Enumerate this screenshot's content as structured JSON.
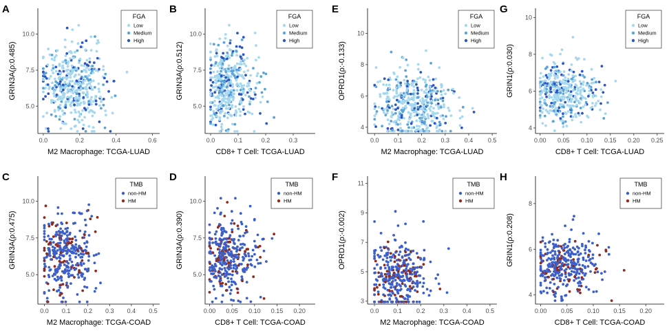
{
  "figure_title": "",
  "colors": {
    "fga": {
      "Low": "#a6d8ef",
      "Medium": "#5aa3d6",
      "High": "#2f56bf"
    },
    "tmb": {
      "non-HM": "#3c5fc8",
      "HM": "#8f2a1f"
    }
  },
  "chart_data": [
    {
      "type": "scatter",
      "panel": "A",
      "ylabel": "GRIN3A(ρ:0.485)",
      "xlabel": "M2 Macrophage: TCGA-LUAD",
      "xlim": [
        -0.03,
        0.64
      ],
      "ylim": [
        3.1,
        11.8
      ],
      "xticks": [
        "0.0",
        "0.2",
        "0.4",
        "0.6"
      ],
      "xtickvals": [
        0,
        0.2,
        0.4,
        0.6
      ],
      "yticks": [
        "5.0",
        "7.5",
        "10.0"
      ],
      "ytickvals": [
        5,
        7.5,
        10
      ],
      "legend_title": "FGA",
      "legend": [
        "Low",
        "Medium",
        "High"
      ],
      "n": 460,
      "seed": 11,
      "x_mean": 0.16,
      "x_sd": 0.09,
      "y_mean": 6.4,
      "y_sd": 1.35,
      "y_max": 11.5,
      "group_probs": [
        0.62,
        0.2,
        0.18
      ]
    },
    {
      "type": "scatter",
      "panel": "B",
      "ylabel": "GRIN3A(ρ:0.512)",
      "xlabel": "CD8+ T Cell: TCGA-LUAD",
      "xlim": [
        -0.02,
        0.38
      ],
      "ylim": [
        3.1,
        11.8
      ],
      "xticks": [
        "0.0",
        "0.1",
        "0.2",
        "0.3"
      ],
      "xtickvals": [
        0,
        0.1,
        0.2,
        0.3
      ],
      "yticks": [
        "5.0",
        "7.5",
        "10.0"
      ],
      "ytickvals": [
        5,
        7.5,
        10
      ],
      "legend_title": "FGA",
      "legend": [
        "Low",
        "Medium",
        "High"
      ],
      "n": 460,
      "seed": 23,
      "x_mean": 0.06,
      "x_sd": 0.05,
      "y_mean": 6.4,
      "y_sd": 1.35,
      "y_max": 11.5,
      "group_probs": [
        0.62,
        0.2,
        0.18
      ]
    },
    {
      "type": "scatter",
      "panel": "E",
      "ylabel": "OPRD1(ρ:-0.133)",
      "xlabel": "M2 Macrophage: TCGA-LUAD",
      "xlim": [
        -0.03,
        0.52
      ],
      "ylim": [
        3.6,
        11.6
      ],
      "xticks": [
        "0.0",
        "0.1",
        "0.2",
        "0.3",
        "0.4",
        "0.5"
      ],
      "xtickvals": [
        0,
        0.1,
        0.2,
        0.3,
        0.4,
        0.5
      ],
      "yticks": [
        "4",
        "6",
        "8",
        "10"
      ],
      "ytickvals": [
        4,
        6,
        8,
        10
      ],
      "legend_title": "FGA",
      "legend": [
        "Low",
        "Medium",
        "High"
      ],
      "n": 460,
      "seed": 37,
      "x_mean": 0.17,
      "x_sd": 0.09,
      "y_mean": 5.4,
      "y_sd": 1.2,
      "y_max": 11.2,
      "group_probs": [
        0.62,
        0.2,
        0.18
      ]
    },
    {
      "type": "scatter",
      "panel": "G",
      "ylabel": "GRIN1(ρ:0.030)",
      "xlabel": "CD8+ T Cell: TCGA-LUAD",
      "xlim": [
        -0.01,
        0.265
      ],
      "ylim": [
        3.7,
        10.5
      ],
      "xticks": [
        "0.00",
        "0.05",
        "0.10",
        "0.15",
        "0.20",
        "0.25"
      ],
      "xtickvals": [
        0,
        0.05,
        0.1,
        0.15,
        0.2,
        0.25
      ],
      "yticks": [
        "4",
        "6",
        "8",
        "10"
      ],
      "ytickvals": [
        4,
        6,
        8,
        10
      ],
      "legend_title": "FGA",
      "legend": [
        "Low",
        "Medium",
        "High"
      ],
      "n": 420,
      "seed": 41,
      "x_mean": 0.05,
      "x_sd": 0.04,
      "y_mean": 5.9,
      "y_sd": 0.8,
      "y_max": 10.2,
      "group_probs": [
        0.62,
        0.2,
        0.18
      ]
    },
    {
      "type": "scatter",
      "panel": "C",
      "ylabel": "GRIN3A(ρ:0.475)",
      "xlabel": "M2 Macrophage: TCGA-COAD",
      "xlim": [
        -0.03,
        0.53
      ],
      "ylim": [
        3.0,
        11.7
      ],
      "xticks": [
        "0.0",
        "0.1",
        "0.2",
        "0.3",
        "0.4",
        "0.5"
      ],
      "xtickvals": [
        0,
        0.1,
        0.2,
        0.3,
        0.4,
        0.5
      ],
      "yticks": [
        "5.0",
        "7.5",
        "10.0"
      ],
      "ytickvals": [
        5,
        7.5,
        10
      ],
      "legend_title": "TMB",
      "legend": [
        "non-HM",
        "HM"
      ],
      "n": 380,
      "seed": 53,
      "x_mean": 0.09,
      "x_sd": 0.07,
      "y_mean": 6.2,
      "y_sd": 1.3,
      "y_max": 11.3,
      "group_probs": [
        0.8,
        0.2
      ]
    },
    {
      "type": "scatter",
      "panel": "D",
      "ylabel": "GRIN3A(ρ:0.390)",
      "xlabel": "CD8+ T Cell: TCGA-COAD",
      "xlim": [
        -0.01,
        0.235
      ],
      "ylim": [
        3.0,
        11.7
      ],
      "xticks": [
        "0.00",
        "0.05",
        "0.10",
        "0.15",
        "0.20"
      ],
      "xtickvals": [
        0,
        0.05,
        0.1,
        0.15,
        0.2
      ],
      "yticks": [
        "5.0",
        "7.5",
        "10.0"
      ],
      "ytickvals": [
        5,
        7.5,
        10
      ],
      "legend_title": "TMB",
      "legend": [
        "non-HM",
        "HM"
      ],
      "n": 380,
      "seed": 67,
      "x_mean": 0.04,
      "x_sd": 0.035,
      "y_mean": 6.2,
      "y_sd": 1.3,
      "y_max": 10.2,
      "group_probs": [
        0.8,
        0.2
      ]
    },
    {
      "type": "scatter",
      "panel": "F",
      "ylabel": "OPRD1(ρ:-0.002)",
      "xlabel": "M2 Macrophage: TCGA-COAD",
      "xlim": [
        -0.03,
        0.53
      ],
      "ylim": [
        2.8,
        11.5
      ],
      "xticks": [
        "0.0",
        "0.1",
        "0.2",
        "0.3",
        "0.4",
        "0.5"
      ],
      "xtickvals": [
        0,
        0.1,
        0.2,
        0.3,
        0.4,
        0.5
      ],
      "yticks": [
        "3",
        "5",
        "7",
        "9",
        "11"
      ],
      "ytickvals": [
        3,
        5,
        7,
        9,
        11
      ],
      "legend_title": "TMB",
      "legend": [
        "non-HM",
        "HM"
      ],
      "n": 360,
      "seed": 79,
      "x_mean": 0.1,
      "x_sd": 0.07,
      "y_mean": 4.6,
      "y_sd": 1.3,
      "y_max": 11.0,
      "group_probs": [
        0.8,
        0.2
      ]
    },
    {
      "type": "scatter",
      "panel": "H",
      "ylabel": "GRIN1(ρ:0.208)",
      "xlabel": "CD8+ T Cell: TCGA-COAD",
      "xlim": [
        -0.01,
        0.235
      ],
      "ylim": [
        3.6,
        9.2
      ],
      "xticks": [
        "0.00",
        "0.05",
        "0.10",
        "0.15",
        "0.20"
      ],
      "xtickvals": [
        0,
        0.05,
        0.1,
        0.15,
        0.2
      ],
      "yticks": [
        "4",
        "6",
        "8"
      ],
      "ytickvals": [
        4,
        6,
        8
      ],
      "legend_title": "TMB",
      "legend": [
        "non-HM",
        "HM"
      ],
      "n": 360,
      "seed": 97,
      "x_mean": 0.04,
      "x_sd": 0.035,
      "y_mean": 5.3,
      "y_sd": 0.65,
      "y_max": 8.0,
      "group_probs": [
        0.8,
        0.2
      ]
    }
  ]
}
